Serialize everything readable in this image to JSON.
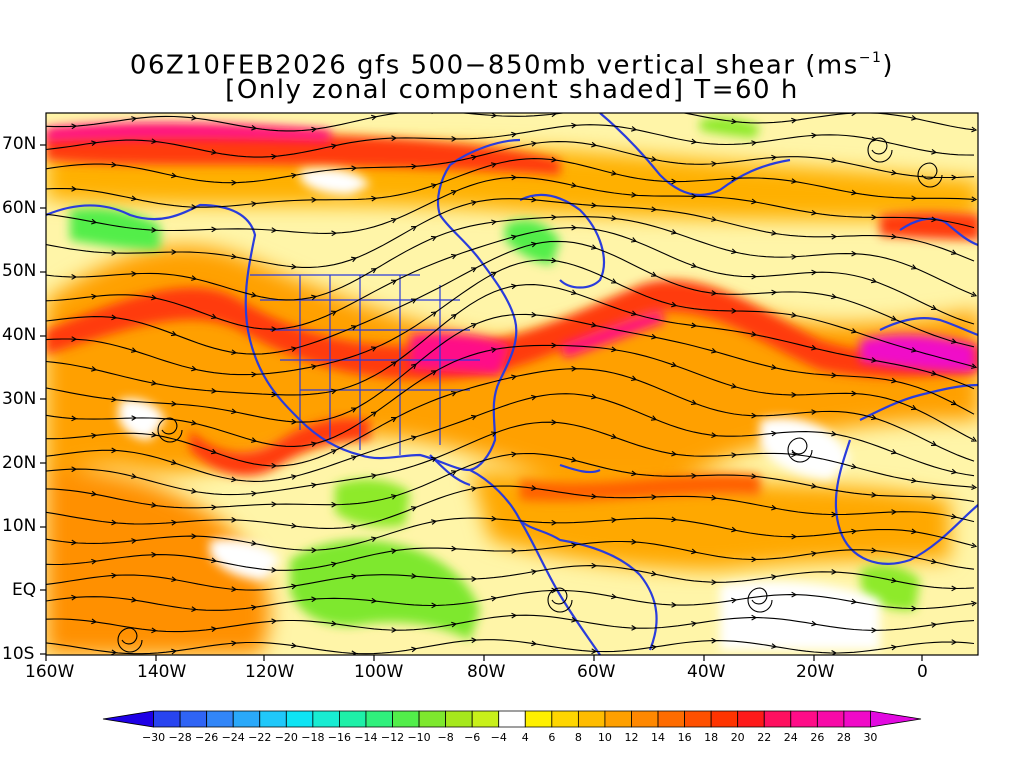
{
  "title": {
    "line1_text": "06Z10FEB2026 gfs 500−850mb vertical shear (ms",
    "line1_sup": "−1",
    "line1_close": ")",
    "line2": "[Only zonal component shaded] T=60 h"
  },
  "map": {
    "lat_labels": [
      "70N",
      "60N",
      "50N",
      "40N",
      "30N",
      "20N",
      "10N",
      "EQ",
      "10S"
    ],
    "lon_labels": [
      "160W",
      "140W",
      "120W",
      "100W",
      "80W",
      "60W",
      "40W",
      "20W",
      "0"
    ],
    "streamline_color": "#000000",
    "coastline_color": "#2a3cdc"
  },
  "colorbar": {
    "labels": [
      "−30",
      "−28",
      "−26",
      "−24",
      "−22",
      "−20",
      "−18",
      "−16",
      "−14",
      "−12",
      "−10",
      "−8",
      "−6",
      "−4",
      "4",
      "6",
      "8",
      "10",
      "12",
      "14",
      "16",
      "18",
      "20",
      "22",
      "24",
      "26",
      "28",
      "30"
    ],
    "colors": [
      "#1e00e6",
      "#2844f0",
      "#2f64f5",
      "#3286f8",
      "#2aa9fa",
      "#20c8fa",
      "#0ee4f4",
      "#18ecd2",
      "#1ef0a8",
      "#30f07c",
      "#52ee4a",
      "#7ee82e",
      "#a6e81c",
      "#c8f01a",
      "#ffffff",
      "#fff000",
      "#ffd600",
      "#ffbc00",
      "#ffa000",
      "#ff8800",
      "#ff6c00",
      "#ff5000",
      "#ff3400",
      "#ff1a1a",
      "#ff1060",
      "#ff0c88",
      "#f80aa8",
      "#f00ac8",
      "#e20ae0"
    ]
  }
}
